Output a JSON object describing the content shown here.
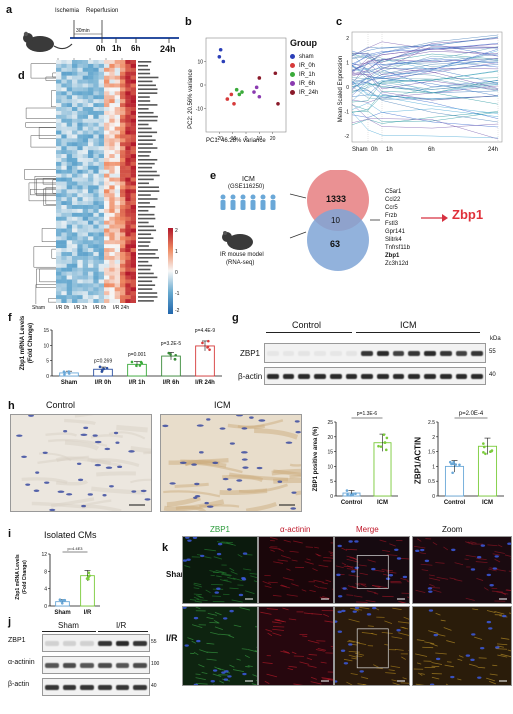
{
  "panels": {
    "a": {
      "label": "a",
      "ischemia": "Ischemia",
      "reperfusion": "Reperfusion",
      "duration": "30min",
      "times": [
        "0h",
        "1h",
        "6h",
        "24h"
      ]
    },
    "b": {
      "label": "b",
      "legend_title": "Group",
      "xlabel": "PC1: 46.28% variance",
      "ylabel": "PC2: 20.56% variance"
    },
    "c": {
      "label": "c",
      "ylabel": "Mean Scaled Expression"
    },
    "d": {
      "label": "d",
      "xlabels": [
        "Sham",
        "I/R 0h",
        "I/R 1h",
        "I/R 6h",
        "I/R 24h"
      ],
      "scale_ticks": [
        "2",
        "1",
        "0",
        "-1",
        "-2"
      ]
    },
    "e": {
      "label": "e",
      "icm": "ICM",
      "icm_geo": "(GSE116250)",
      "ir_model": "IR mouse model",
      "ir_seq": "(RNA-seq)",
      "n_icm": "1333",
      "n_overlap": "10",
      "n_ir": "63",
      "genes": [
        "C5ar1",
        "Ccl22",
        "Ccr5",
        "Frzb",
        "Fstl3",
        "Gpr141",
        "Slitrk4",
        "Tnfrsf11b",
        "Zbp1",
        "Zc3h12d"
      ],
      "highlight": "Zbp1",
      "highlight_color": "#e0303a"
    },
    "f": {
      "label": "f",
      "ylabel1": "Zbp1 mRNA Levels",
      "ylabel2": "(Fold Change)",
      "pvals": [
        "p=0.269",
        "p=0.001",
        "p=3.2E-5",
        "p=4.4E-9"
      ]
    },
    "g": {
      "label": "g",
      "control": "Control",
      "icm": "ICM",
      "kda": "kDa",
      "row1": "ZBP1",
      "row2": "β-actin",
      "mw1": "55",
      "mw2": "40"
    },
    "h": {
      "label": "h",
      "control": "Control",
      "icm": "ICM",
      "p1": "p=1.3E-6",
      "p2": "p=2.0E-4",
      "ylabel1": "ZBP1 positive area (%)",
      "ylabel2": "ZBP1/ACTIN",
      "xt": [
        "Control",
        "ICM"
      ]
    },
    "i": {
      "label": "i",
      "title": "Isolated CMs",
      "ylabel1": "Zbp1 mRNA Levels",
      "ylabel2": "(Fold Change)",
      "pval": "p=4.4E3",
      "xt": [
        "Sham",
        "I/R"
      ]
    },
    "j": {
      "label": "j",
      "sham": "Sham",
      "ir": "I/R",
      "rows": [
        "ZBP1",
        "α-actinin",
        "β-actin"
      ],
      "mws": [
        "55",
        "100",
        "40"
      ]
    },
    "k": {
      "label": "k",
      "cols": [
        "ZBP1",
        "α-actinin",
        "Merge",
        "Zoom"
      ],
      "col_colors": [
        "#2a9a3a",
        "#c0182a",
        "#c0182a",
        "#111111"
      ],
      "rows": [
        "Sham",
        "I/R"
      ]
    }
  },
  "chart_data": [
    {
      "type": "scatter",
      "panel": "b",
      "legend_title": "Group",
      "xlabel": "PC1: 46.28% variance",
      "ylabel": "PC2: 20.56% variance",
      "xlim": [
        -30,
        30
      ],
      "ylim": [
        -20,
        20
      ],
      "series": [
        {
          "name": "sham",
          "color": "#2b3fb8",
          "points": [
            [
              -20,
              12
            ],
            [
              -19,
              15
            ],
            [
              -17,
              10
            ]
          ]
        },
        {
          "name": "IR_0h",
          "color": "#d63a3a",
          "points": [
            [
              -14,
              -6
            ],
            [
              -11,
              -4
            ],
            [
              -9,
              -8
            ]
          ]
        },
        {
          "name": "IR_1h",
          "color": "#3aaa3a",
          "points": [
            [
              -7,
              -2
            ],
            [
              -5,
              -4
            ],
            [
              -3,
              -3
            ]
          ]
        },
        {
          "name": "IR_6h",
          "color": "#8a3ab0",
          "points": [
            [
              6,
              -3
            ],
            [
              8,
              -1
            ],
            [
              10,
              -5
            ]
          ]
        },
        {
          "name": "IR_24h",
          "color": "#8a1a2a",
          "points": [
            [
              10,
              3
            ],
            [
              22,
              5
            ],
            [
              24,
              -8
            ]
          ]
        }
      ]
    },
    {
      "type": "bar",
      "panel": "f",
      "categories": [
        "Sham",
        "I/R 0h",
        "I/R 1h",
        "I/R 6h",
        "I/R 24h"
      ],
      "values": [
        1.0,
        2.2,
        3.8,
        6.5,
        9.8
      ],
      "ylim": [
        0,
        15
      ],
      "yticks": [
        0,
        5,
        10,
        15
      ]
    },
    {
      "type": "bar",
      "panel": "h1",
      "categories": [
        "Control",
        "ICM"
      ],
      "values": [
        1.0,
        18.0
      ],
      "ylim": [
        0,
        25
      ],
      "yticks": [
        0,
        5,
        10,
        15,
        20,
        25
      ]
    },
    {
      "type": "bar",
      "panel": "h2",
      "categories": [
        "Control",
        "ICM"
      ],
      "values": [
        1.0,
        1.68
      ],
      "ylim": [
        0,
        2.5
      ],
      "yticks": [
        0.0,
        0.5,
        1.0,
        1.5,
        2.0,
        2.5
      ]
    },
    {
      "type": "bar",
      "panel": "i",
      "categories": [
        "Sham",
        "I/R"
      ],
      "values": [
        1.0,
        7.0
      ],
      "ylim": [
        0,
        12
      ],
      "yticks": [
        0,
        4,
        8,
        12
      ]
    }
  ]
}
